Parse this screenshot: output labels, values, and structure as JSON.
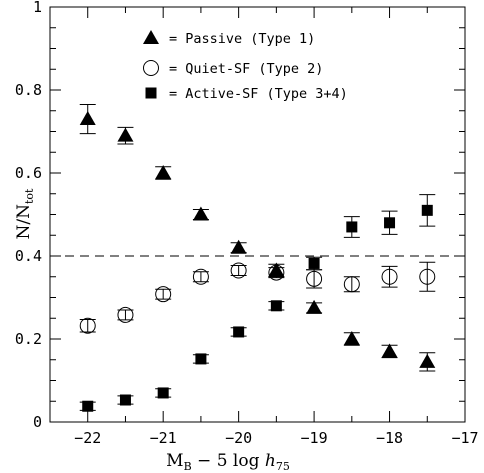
{
  "chart_data": {
    "type": "scatter",
    "xlabel": {
      "base": "M",
      "sub": "B",
      "rest": " − 5 log ",
      "h": "h",
      "hsub": "75"
    },
    "ylabel": {
      "base": "N/N",
      "sub": "tot"
    },
    "xlim": [
      -22.5,
      -17
    ],
    "ylim": [
      0,
      1
    ],
    "xticks_major": [
      -22,
      -21,
      -20,
      -19,
      -18,
      -17
    ],
    "xtick_labels": [
      "−22",
      "−21",
      "−20",
      "−19",
      "−18",
      "−17"
    ],
    "yticks_major": [
      0,
      0.2,
      0.4,
      0.6,
      0.8,
      1
    ],
    "ytick_labels": [
      "0",
      "0.2",
      "0.4",
      "0.6",
      "0.8",
      "1"
    ],
    "reference_line_y": 0.4,
    "legend_position": "top-center",
    "series": [
      {
        "name": "= Passive (Type 1)",
        "marker": "filled-triangle",
        "x": [
          -22,
          -21.5,
          -21,
          -20.5,
          -20,
          -19.5,
          -19,
          -18.5,
          -18,
          -17.5
        ],
        "y": [
          0.73,
          0.69,
          0.6,
          0.5,
          0.42,
          0.365,
          0.275,
          0.2,
          0.17,
          0.145
        ],
        "err": [
          0.035,
          0.02,
          0.015,
          0.012,
          0.012,
          0.015,
          0.012,
          0.015,
          0.015,
          0.022
        ]
      },
      {
        "name": "= Quiet-SF (Type 2)",
        "marker": "open-circle",
        "x": [
          -22,
          -21.5,
          -21,
          -20.5,
          -20,
          -19.5,
          -19,
          -18.5,
          -18,
          -17.5
        ],
        "y": [
          0.232,
          0.258,
          0.308,
          0.35,
          0.365,
          0.36,
          0.345,
          0.332,
          0.35,
          0.35
        ],
        "err": [
          0.015,
          0.012,
          0.012,
          0.012,
          0.012,
          0.012,
          0.022,
          0.018,
          0.025,
          0.035
        ]
      },
      {
        "name": "= Active-SF (Type 3+4)",
        "marker": "filled-square",
        "x": [
          -22,
          -21.5,
          -21,
          -20.5,
          -20,
          -19.5,
          -19,
          -18.5,
          -18,
          -17.5
        ],
        "y": [
          0.038,
          0.053,
          0.07,
          0.152,
          0.217,
          0.28,
          0.382,
          0.47,
          0.48,
          0.51
        ],
        "err": [
          0.01,
          0.01,
          0.01,
          0.01,
          0.01,
          0.01,
          0.015,
          0.025,
          0.028,
          0.038
        ]
      }
    ]
  }
}
